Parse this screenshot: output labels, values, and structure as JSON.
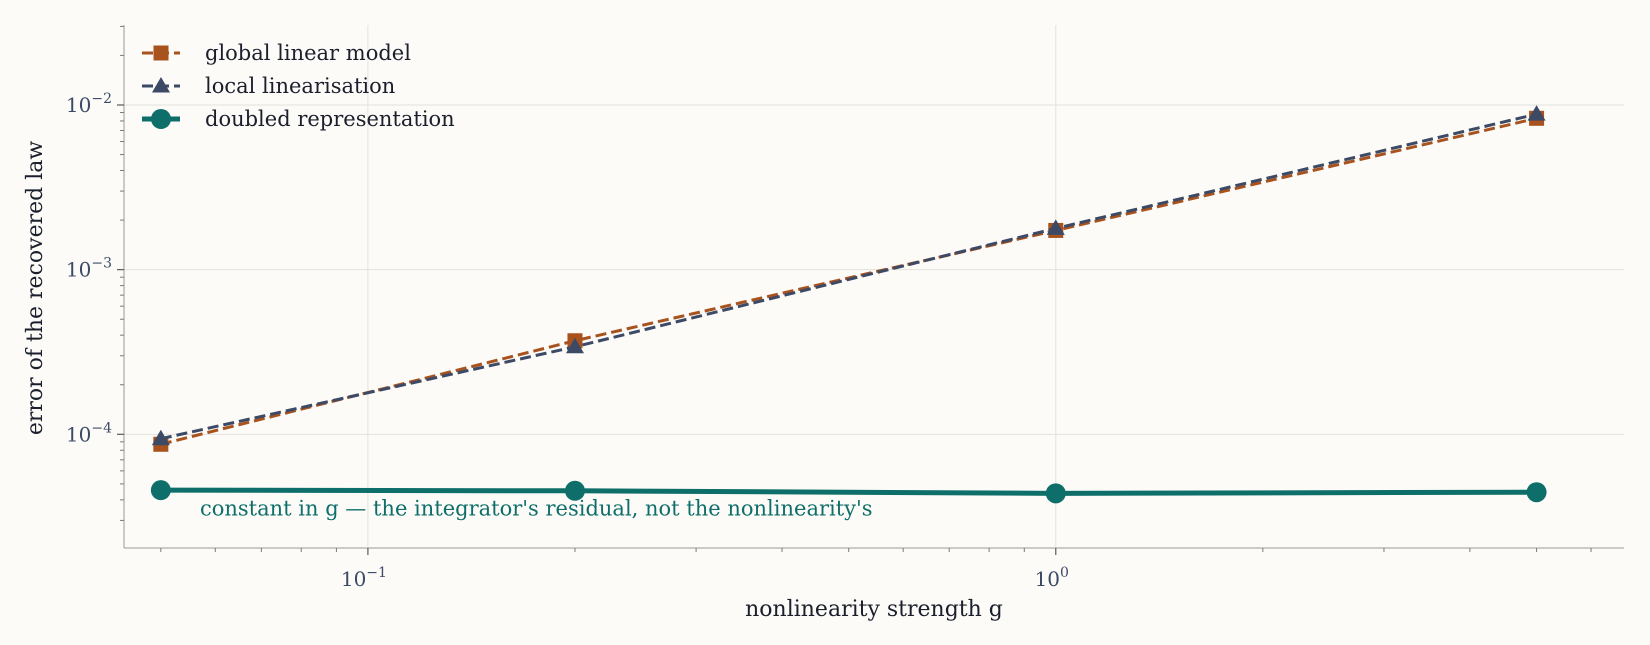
{
  "chart_data": {
    "type": "line",
    "title": "",
    "xlabel": "nonlinearity strength  g",
    "ylabel": "error of the recovered law",
    "xscale": "log",
    "yscale": "log",
    "xlim": [
      0.0442,
      6.7
    ],
    "ylim": [
      2.04e-05,
      0.0306
    ],
    "grid": true,
    "legend_position": "top-left",
    "x_ticks": [
      {
        "value": 0.1,
        "base": "10",
        "exp": "−1"
      },
      {
        "value": 1,
        "base": "10",
        "exp": "0"
      }
    ],
    "y_ticks": [
      {
        "value": 0.0001,
        "base": "10",
        "exp": "−4"
      },
      {
        "value": 0.001,
        "base": "10",
        "exp": "−3"
      },
      {
        "value": 0.01,
        "base": "10",
        "exp": "−2"
      }
    ],
    "series": [
      {
        "name": "global linear model",
        "color": "#a8521e",
        "line_style": "dashed",
        "marker": "square",
        "x": [
          0.05,
          0.2,
          1,
          5
        ],
        "y": [
          8.7e-05,
          0.00037,
          0.00173,
          0.0083
        ]
      },
      {
        "name": "local linearisation",
        "color": "#3c4a66",
        "line_style": "dashed",
        "marker": "triangle",
        "x": [
          0.05,
          0.2,
          1,
          5
        ],
        "y": [
          9.4e-05,
          0.00034,
          0.00178,
          0.0088
        ]
      },
      {
        "name": "doubled representation",
        "color": "#0e6e69",
        "line_style": "solid",
        "marker": "circle",
        "x": [
          0.05,
          0.2,
          1,
          5
        ],
        "y": [
          4.58e-05,
          4.54e-05,
          4.38e-05,
          4.45e-05
        ]
      }
    ],
    "annotations": [
      {
        "text": "constant in g — the integrator's residual, not the nonlinearity's",
        "x": 0.057,
        "y": 3.22e-05,
        "color": "#0e6e69"
      }
    ]
  }
}
